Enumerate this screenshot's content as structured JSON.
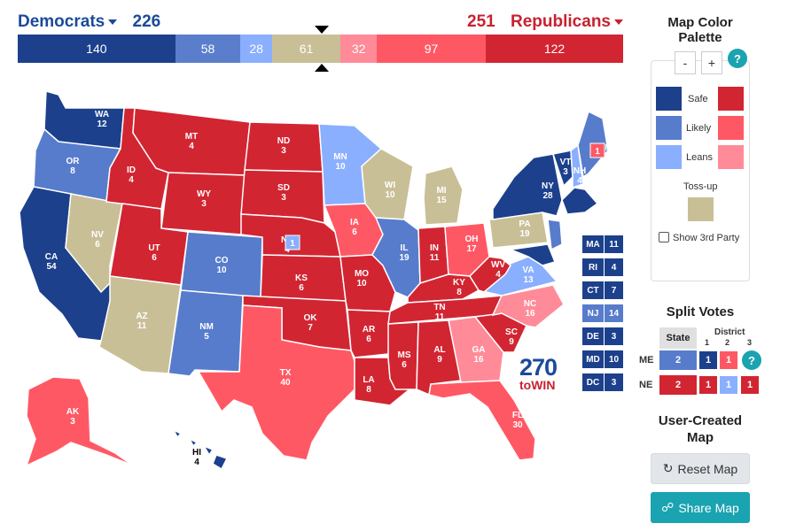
{
  "header": {
    "dem_label": "Democrats",
    "dem_total": "226",
    "rep_total": "251",
    "rep_label": "Republicans"
  },
  "tally": [
    {
      "value": "140",
      "color": "#1c408c",
      "weight": 140
    },
    {
      "value": "58",
      "color": "#5a7ecb",
      "weight": 58
    },
    {
      "value": "28",
      "color": "#8aafff",
      "weight": 28
    },
    {
      "value": "61",
      "color": "#c9bf97",
      "weight": 61
    },
    {
      "value": "32",
      "color": "#ff8b98",
      "weight": 32
    },
    {
      "value": "97",
      "color": "#ff5865",
      "weight": 97
    },
    {
      "value": "122",
      "color": "#d22532",
      "weight": 122
    }
  ],
  "colors": {
    "safe_d": "#1c408c",
    "likely_d": "#577ccc",
    "lean_d": "#8aafff",
    "tossup": "#c9bf97",
    "lean_r": "#ff8b98",
    "likely_r": "#ff5865",
    "safe_r": "#d22532",
    "teal": "#1aa3b0"
  },
  "states": {
    "WA": {
      "abbr": "WA",
      "ev": "12"
    },
    "OR": {
      "abbr": "OR",
      "ev": "8"
    },
    "CA": {
      "abbr": "CA",
      "ev": "54"
    },
    "NV": {
      "abbr": "NV",
      "ev": "6"
    },
    "ID": {
      "abbr": "ID",
      "ev": "4"
    },
    "MT": {
      "abbr": "MT",
      "ev": "4"
    },
    "WY": {
      "abbr": "WY",
      "ev": "3"
    },
    "UT": {
      "abbr": "UT",
      "ev": "6"
    },
    "AZ": {
      "abbr": "AZ",
      "ev": "11"
    },
    "CO": {
      "abbr": "CO",
      "ev": "10"
    },
    "NM": {
      "abbr": "NM",
      "ev": "5"
    },
    "ND": {
      "abbr": "ND",
      "ev": "3"
    },
    "SD": {
      "abbr": "SD",
      "ev": "3"
    },
    "NE": {
      "abbr": "NE",
      "ev": "4"
    },
    "KS": {
      "abbr": "KS",
      "ev": "6"
    },
    "OK": {
      "abbr": "OK",
      "ev": "7"
    },
    "TX": {
      "abbr": "TX",
      "ev": "40"
    },
    "MN": {
      "abbr": "MN",
      "ev": "10"
    },
    "IA": {
      "abbr": "IA",
      "ev": "6"
    },
    "MO": {
      "abbr": "MO",
      "ev": "10"
    },
    "AR": {
      "abbr": "AR",
      "ev": "6"
    },
    "LA": {
      "abbr": "LA",
      "ev": "8"
    },
    "WI": {
      "abbr": "WI",
      "ev": "10"
    },
    "IL": {
      "abbr": "IL",
      "ev": "19"
    },
    "MI": {
      "abbr": "MI",
      "ev": "15"
    },
    "IN": {
      "abbr": "IN",
      "ev": "11"
    },
    "OH": {
      "abbr": "OH",
      "ev": "17"
    },
    "KY": {
      "abbr": "KY",
      "ev": "8"
    },
    "TN": {
      "abbr": "TN",
      "ev": "11"
    },
    "MS": {
      "abbr": "MS",
      "ev": "6"
    },
    "AL": {
      "abbr": "AL",
      "ev": "9"
    },
    "GA": {
      "abbr": "GA",
      "ev": "16"
    },
    "FL": {
      "abbr": "FL",
      "ev": "30"
    },
    "SC": {
      "abbr": "SC",
      "ev": "9"
    },
    "NC": {
      "abbr": "NC",
      "ev": "16"
    },
    "VA": {
      "abbr": "VA",
      "ev": "13"
    },
    "WV": {
      "abbr": "WV",
      "ev": "4"
    },
    "PA": {
      "abbr": "PA",
      "ev": "19"
    },
    "NY": {
      "abbr": "NY",
      "ev": "28"
    },
    "VT": {
      "abbr": "VT",
      "ev": "3"
    },
    "NH": {
      "abbr": "NH",
      "ev": "4"
    },
    "ME": {
      "abbr": "ME",
      "ev": "1"
    },
    "AK": {
      "abbr": "AK",
      "ev": "3"
    },
    "HI": {
      "abbr": "HI",
      "ev": "4"
    },
    "NE_district": "1",
    "ME_d1": "1"
  },
  "small_states": [
    {
      "abbr": "MA",
      "ev": "11",
      "color": "#1c408c"
    },
    {
      "abbr": "RI",
      "ev": "4",
      "color": "#1c408c"
    },
    {
      "abbr": "CT",
      "ev": "7",
      "color": "#1c408c"
    },
    {
      "abbr": "NJ",
      "ev": "14",
      "color": "#577ccc"
    },
    {
      "abbr": "DE",
      "ev": "3",
      "color": "#1c408c"
    },
    {
      "abbr": "MD",
      "ev": "10",
      "color": "#1c408c"
    },
    {
      "abbr": "DC",
      "ev": "3",
      "color": "#1c408c"
    }
  ],
  "logo": {
    "number": "270",
    "sub": "toWIN"
  },
  "palette": {
    "title": "Map Color Palette",
    "zoom_out": "-",
    "zoom_in": "+",
    "help": "?",
    "safe": "Safe",
    "likely": "Likely",
    "leans": "Leans",
    "tossup": "Toss-up",
    "show_third_party": "Show 3rd Party"
  },
  "split": {
    "title": "Split Votes",
    "state_header": "State",
    "district_header": "District",
    "districts": [
      "1",
      "2",
      "3"
    ],
    "me": {
      "label": "ME",
      "state": "2",
      "d1": "1",
      "d2": "1"
    },
    "ne": {
      "label": "NE",
      "state": "2",
      "d1": "1",
      "d2": "1",
      "d3": "1"
    }
  },
  "user_map": {
    "title": "User-Created Map",
    "reset": "Reset Map",
    "share": "Share Map"
  }
}
